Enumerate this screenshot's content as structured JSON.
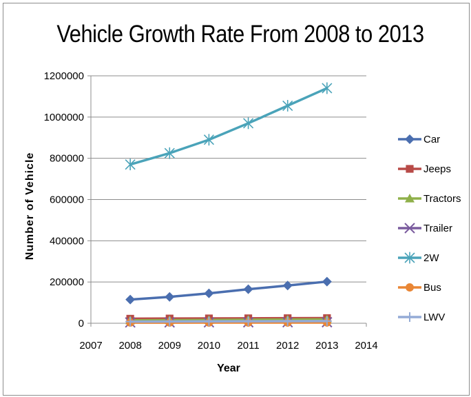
{
  "chart_data": {
    "type": "line",
    "title": "Vehicle Growth Rate From 2008 to 2013",
    "xlabel": "Year",
    "ylabel": "Number  of  Vehicle",
    "x": [
      2008,
      2009,
      2010,
      2011,
      2012,
      2013
    ],
    "xlim": [
      2007,
      2014
    ],
    "xticks": [
      "2007",
      "2008",
      "2009",
      "2010",
      "2011",
      "2012",
      "2013",
      "2014"
    ],
    "ylim": [
      0,
      1200000
    ],
    "yticks": [
      "0",
      "200000",
      "400000",
      "600000",
      "800000",
      "1000000",
      "1200000"
    ],
    "grid": "horizontal",
    "legend_position": "right",
    "series": [
      {
        "name": "Car",
        "color": "#4a6eaf",
        "marker": "diamond",
        "values": [
          115000,
          128000,
          145000,
          165000,
          183000,
          202000
        ]
      },
      {
        "name": "Jeeps",
        "color": "#b84a47",
        "marker": "square",
        "values": [
          22000,
          23000,
          23500,
          24000,
          24500,
          25000
        ]
      },
      {
        "name": "Tractors",
        "color": "#8fb04a",
        "marker": "triangle",
        "values": [
          14000,
          15000,
          16000,
          17000,
          18000,
          19000
        ]
      },
      {
        "name": "Trailer",
        "color": "#7a5b9e",
        "marker": "x",
        "values": [
          4000,
          4200,
          4400,
          4600,
          4800,
          5000
        ]
      },
      {
        "name": "2W",
        "color": "#4aa3b9",
        "marker": "asterisk",
        "values": [
          770000,
          825000,
          890000,
          970000,
          1055000,
          1140000
        ]
      },
      {
        "name": "Bus",
        "color": "#e98635",
        "marker": "circle",
        "values": [
          3000,
          3100,
          3200,
          3300,
          3400,
          3500
        ]
      },
      {
        "name": "LWV",
        "color": "#94abd6",
        "marker": "plus",
        "values": [
          8000,
          8500,
          9000,
          9500,
          10000,
          10500
        ]
      }
    ]
  }
}
